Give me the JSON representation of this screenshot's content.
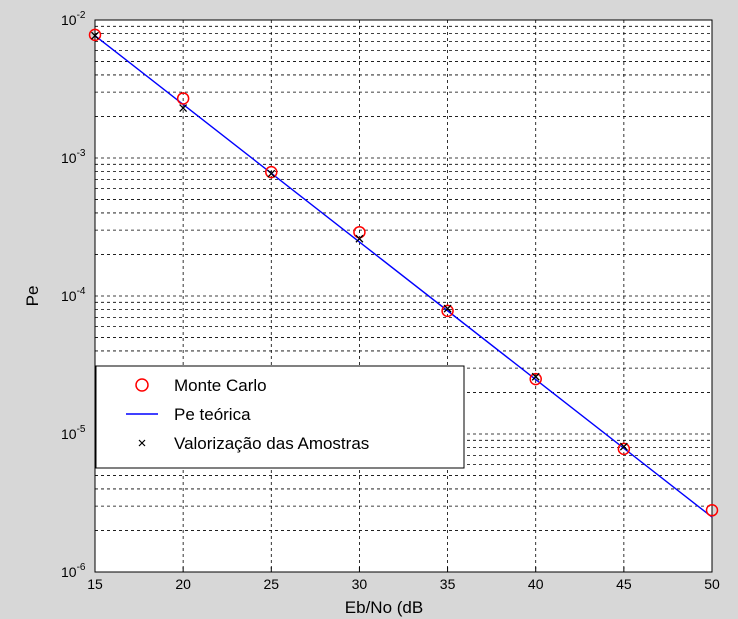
{
  "chart_data": {
    "type": "line",
    "title": "",
    "xlabel": "Eb/No (dB",
    "ylabel": "Pe",
    "xlim": [
      15,
      50
    ],
    "ylim": [
      1e-06,
      0.01
    ],
    "yscale": "log",
    "grid": true,
    "legend_position": "lower-left",
    "x_ticks": [
      15,
      20,
      25,
      30,
      35,
      40,
      45,
      50
    ],
    "y_ticks": [
      {
        "value": 1e-06,
        "base": "10",
        "exp": "-6"
      },
      {
        "value": 1e-05,
        "base": "10",
        "exp": "-5"
      },
      {
        "value": 0.0001,
        "base": "10",
        "exp": "-4"
      },
      {
        "value": 0.001,
        "base": "10",
        "exp": "-3"
      },
      {
        "value": 0.01,
        "base": "10",
        "exp": "-2"
      }
    ],
    "series": [
      {
        "name": "Monte Carlo",
        "marker": "circle",
        "color": "#ff0000",
        "x": [
          15,
          20,
          25,
          30,
          35,
          40,
          45,
          50
        ],
        "y": [
          0.0078,
          0.0027,
          0.00079,
          0.00029,
          7.8e-05,
          2.5e-05,
          7.8e-06,
          2.8e-06
        ]
      },
      {
        "name": "Pe teórica",
        "marker": "line",
        "color": "#0000ff",
        "x": [
          15,
          50
        ],
        "y": [
          0.0077,
          2.5e-06
        ]
      },
      {
        "name": "Valorização das Amostras",
        "marker": "x",
        "color": "#000000",
        "x": [
          15,
          20,
          25,
          30,
          35,
          40,
          45
        ],
        "y": [
          0.0077,
          0.0023,
          0.00077,
          0.00026,
          8.1e-05,
          2.6e-05,
          8.1e-06
        ]
      }
    ]
  }
}
